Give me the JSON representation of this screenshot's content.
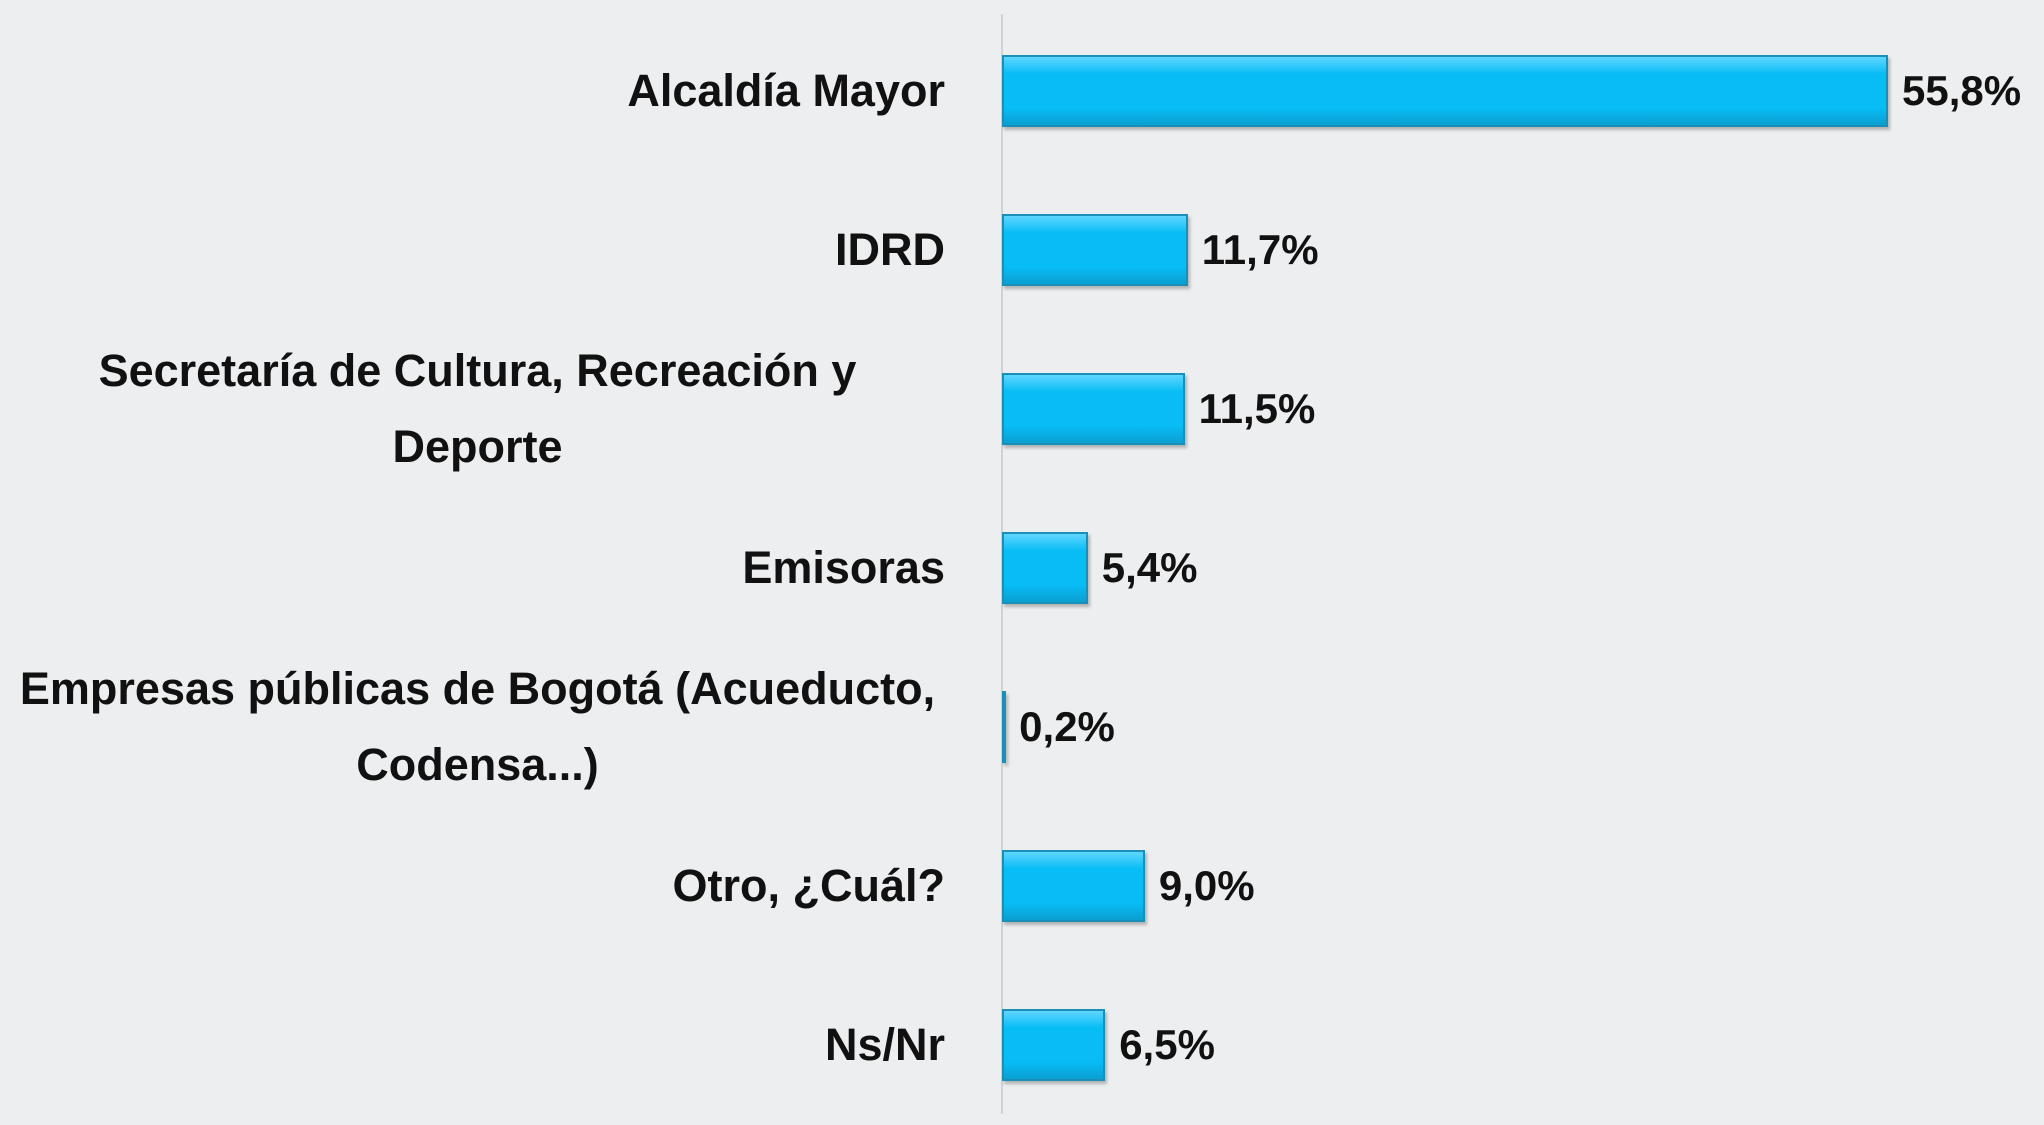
{
  "chart_data": {
    "type": "bar",
    "orientation": "horizontal",
    "categories": [
      "Alcaldía Mayor",
      "IDRD",
      "Secretaría de Cultura, Recreación y Deporte",
      "Emisoras",
      "Empresas públicas de Bogotá (Acueducto, Codensa...)",
      "Otro, ¿Cuál?",
      "Ns/Nr"
    ],
    "values": [
      55.8,
      11.7,
      11.5,
      5.4,
      0.2,
      9.0,
      6.5
    ],
    "value_labels": [
      "55,8%",
      "11,7%",
      "11,5%",
      "5,4%",
      "0,2%",
      "9,0%",
      "6,5%"
    ],
    "color": "#08bcf5"
  }
}
